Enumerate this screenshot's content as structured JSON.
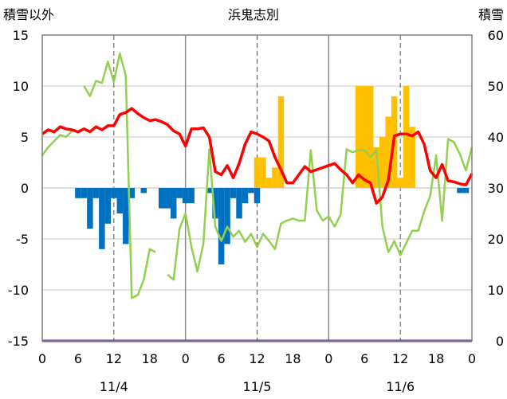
{
  "chart_data": {
    "type": "bar+line",
    "title": "浜鬼志別",
    "left_axis_label": "積雪以外",
    "right_axis_label": "積雪",
    "left_ylim": [
      -15,
      15
    ],
    "right_ylim": [
      0,
      60
    ],
    "left_ticks": [
      15,
      10,
      5,
      0,
      -5,
      -10,
      -15
    ],
    "right_ticks": [
      60,
      50,
      40,
      30,
      20,
      10,
      0
    ],
    "x_range_hours": [
      0,
      72
    ],
    "hour_ticks": [
      0,
      6,
      12,
      18,
      0,
      6,
      12,
      18,
      0,
      6,
      12,
      18,
      0
    ],
    "date_labels": [
      "11/4",
      "11/5",
      "11/6"
    ],
    "colors": {
      "red_line": "#ff0000",
      "green_line": "#92d050",
      "blue_bar": "#0070c0",
      "orange_bar": "#ffc000",
      "purple_line": "#7030a0"
    },
    "blue_bars": {
      "left_axis": true,
      "hours": [
        6,
        7,
        8,
        9,
        10,
        11,
        12,
        13,
        14,
        15,
        16,
        17,
        18,
        19,
        20,
        21,
        22,
        23,
        24,
        25,
        26,
        27,
        28,
        29,
        30,
        31,
        32,
        33,
        34,
        35,
        36,
        37,
        38,
        39,
        40,
        41,
        42,
        43,
        44,
        45,
        46,
        47,
        48,
        49,
        50,
        51,
        52,
        53,
        54,
        55,
        56,
        57,
        58,
        59,
        60,
        61,
        62,
        63,
        64,
        65,
        66,
        67,
        68,
        69,
        70,
        71
      ],
      "values": [
        -1.0,
        -1.0,
        -4.0,
        -1.0,
        -6.0,
        -3.5,
        -1.0,
        -2.5,
        -5.5,
        -1.0,
        0,
        -0.5,
        0,
        0,
        -2.0,
        -2.0,
        -3.0,
        -1.0,
        -1.5,
        -1.5,
        0,
        0,
        -0.5,
        -3.0,
        -7.5,
        -5.5,
        -1.0,
        -3.0,
        -1.5,
        -0.5,
        -1.5,
        0,
        0,
        0,
        0,
        0,
        0,
        0,
        0,
        0,
        0,
        0,
        0,
        0,
        0,
        0,
        0,
        0,
        0,
        0,
        0,
        0,
        0,
        0,
        0,
        0,
        0,
        0,
        0,
        0,
        0,
        0,
        0,
        0,
        -0.5,
        -0.5
      ]
    },
    "orange_bars": {
      "left_axis": true,
      "hours": [
        36,
        37,
        38,
        39,
        40,
        41,
        42,
        43,
        44,
        45,
        46,
        47,
        48,
        49,
        50,
        51,
        52,
        53,
        54,
        55,
        56,
        57,
        58,
        59,
        60,
        61,
        62,
        63,
        64
      ],
      "values": [
        3,
        3,
        1,
        2,
        9,
        0,
        0,
        0,
        0,
        0,
        0,
        0,
        0,
        0,
        0,
        0,
        0,
        10,
        10,
        10,
        4,
        5,
        7,
        9,
        1,
        10,
        6,
        0,
        0
      ]
    },
    "red_line": {
      "axis": "left",
      "hours": [
        0,
        1,
        2,
        3,
        4,
        5,
        6,
        7,
        8,
        9,
        10,
        11,
        12,
        13,
        14,
        15,
        16,
        17,
        18,
        19,
        20,
        21,
        22,
        23,
        24,
        25,
        26,
        27,
        28,
        29,
        30,
        31,
        32,
        33,
        34,
        35,
        36,
        37,
        38,
        39,
        40,
        41,
        42,
        43,
        44,
        45,
        46,
        47,
        48,
        49,
        50,
        51,
        52,
        53,
        54,
        55,
        56,
        57,
        58,
        59,
        60,
        61,
        62,
        63,
        64,
        65,
        66,
        67,
        68,
        69,
        70,
        71,
        72
      ],
      "values": [
        5.3,
        5.7,
        5.5,
        6.0,
        5.8,
        5.7,
        5.5,
        5.8,
        5.5,
        6.0,
        5.7,
        6.1,
        6.1,
        7.2,
        7.4,
        7.8,
        7.3,
        6.9,
        6.6,
        6.7,
        6.5,
        6.2,
        5.6,
        5.3,
        4.1,
        5.8,
        5.8,
        5.9,
        5.0,
        1.6,
        1.3,
        2.2,
        1.0,
        2.4,
        4.3,
        5.5,
        5.3,
        5.0,
        4.6,
        3.0,
        1.8,
        0.5,
        0.5,
        1.3,
        2.1,
        1.6,
        1.8,
        2.0,
        2.2,
        2.4,
        1.8,
        1.3,
        0.5,
        1.3,
        0.8,
        0.5,
        -1.5,
        -0.9,
        0.8,
        5.1,
        5.3,
        5.3,
        5.1,
        5.5,
        4.3,
        1.7,
        1.0,
        2.3,
        0.7,
        0.6,
        0.4,
        0.3,
        1.4
      ]
    },
    "green_line": {
      "axis": "left",
      "segments": [
        {
          "hours": [
            0,
            1,
            2,
            3,
            4,
            5
          ],
          "values": [
            3.2,
            4.0,
            4.6,
            5.2,
            5.0,
            5.6
          ]
        },
        {
          "hours": [
            7,
            8,
            9,
            10,
            11,
            12,
            13,
            14,
            15,
            16,
            17,
            18,
            19
          ],
          "values": [
            10.0,
            9.0,
            10.5,
            10.3,
            12.4,
            10.4,
            13.2,
            11.0,
            -10.8,
            -10.5,
            -9.0,
            -6.0,
            -6.3
          ]
        },
        {
          "hours": [
            21,
            22,
            23,
            24,
            25,
            26,
            27,
            28,
            29,
            30,
            31,
            32,
            33,
            34,
            35,
            36,
            37,
            38,
            39,
            40,
            41,
            42,
            43,
            44,
            45,
            46,
            47,
            48,
            49,
            50,
            51,
            52,
            53,
            54,
            55,
            56,
            57,
            58,
            59,
            60,
            61,
            62,
            63,
            64,
            65,
            66,
            67,
            68,
            69,
            70,
            71,
            72
          ],
          "values": [
            -8.5,
            -9.0,
            -4.0,
            -2.5,
            -5.8,
            -8.2,
            -5.5,
            3.8,
            -3.8,
            -5.2,
            -3.8,
            -4.8,
            -4.2,
            -5.3,
            -4.5,
            -5.8,
            -4.5,
            -5.2,
            -6.0,
            -3.5,
            -3.2,
            -3.0,
            -3.2,
            -3.2,
            3.7,
            -2.2,
            -3.2,
            -2.8,
            -3.8,
            -2.6,
            3.8,
            3.5,
            3.7,
            3.7,
            3.0,
            3.7,
            -3.8,
            -6.3,
            -5.2,
            -6.6,
            -5.4,
            -4.2,
            -4.2,
            -2.3,
            -0.8,
            3.2,
            -3.2,
            4.8,
            4.5,
            3.3,
            1.7,
            4.0
          ]
        }
      ]
    },
    "purple_line": {
      "axis": "right",
      "value": 0
    }
  }
}
